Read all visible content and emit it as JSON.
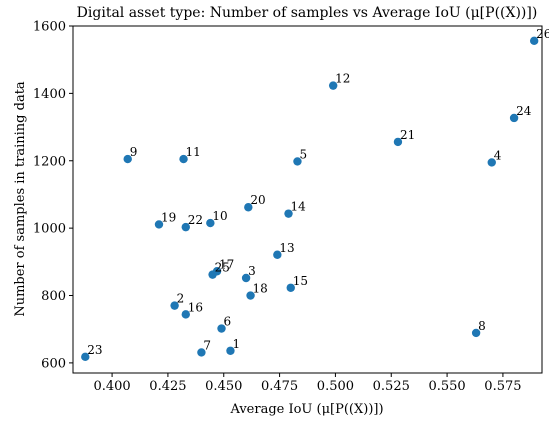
{
  "chart_data": {
    "type": "scatter",
    "title": "Digital asset type: Number of samples vs Average IoU (μ[P((X))])",
    "xlabel": "Average IoU (μ[P((X))])",
    "ylabel": "Number of samples in training data",
    "xlim": [
      0.3825,
      0.5925
    ],
    "ylim": [
      570,
      1600
    ],
    "xticks": [
      0.4,
      0.425,
      0.45,
      0.475,
      0.5,
      0.525,
      0.55,
      0.575
    ],
    "xtick_labels": [
      "0.400",
      "0.425",
      "0.450",
      "0.475",
      "0.500",
      "0.525",
      "0.550",
      "0.575"
    ],
    "yticks": [
      600,
      800,
      1000,
      1200,
      1400,
      1600
    ],
    "ytick_labels": [
      "600",
      "800",
      "1000",
      "1200",
      "1400",
      "1600"
    ],
    "grid": false,
    "marker_color": "#1f77b4",
    "points": [
      {
        "label": "1",
        "x": 0.453,
        "y": 636
      },
      {
        "label": "2",
        "x": 0.428,
        "y": 770
      },
      {
        "label": "3",
        "x": 0.46,
        "y": 852
      },
      {
        "label": "4",
        "x": 0.57,
        "y": 1195
      },
      {
        "label": "5",
        "x": 0.483,
        "y": 1198
      },
      {
        "label": "6",
        "x": 0.449,
        "y": 702
      },
      {
        "label": "7",
        "x": 0.44,
        "y": 631
      },
      {
        "label": "8",
        "x": 0.563,
        "y": 689
      },
      {
        "label": "9",
        "x": 0.407,
        "y": 1205
      },
      {
        "label": "10",
        "x": 0.444,
        "y": 1015
      },
      {
        "label": "11",
        "x": 0.432,
        "y": 1205
      },
      {
        "label": "12",
        "x": 0.499,
        "y": 1423
      },
      {
        "label": "13",
        "x": 0.474,
        "y": 921
      },
      {
        "label": "14",
        "x": 0.479,
        "y": 1043
      },
      {
        "label": "15",
        "x": 0.48,
        "y": 823
      },
      {
        "label": "16",
        "x": 0.433,
        "y": 744
      },
      {
        "label": "17",
        "x": 0.447,
        "y": 872
      },
      {
        "label": "18",
        "x": 0.462,
        "y": 800
      },
      {
        "label": "19",
        "x": 0.421,
        "y": 1011
      },
      {
        "label": "20",
        "x": 0.461,
        "y": 1062
      },
      {
        "label": "21",
        "x": 0.528,
        "y": 1256
      },
      {
        "label": "22",
        "x": 0.433,
        "y": 1003
      },
      {
        "label": "23",
        "x": 0.388,
        "y": 618
      },
      {
        "label": "24",
        "x": 0.58,
        "y": 1327
      },
      {
        "label": "25",
        "x": 0.445,
        "y": 862
      },
      {
        "label": "26",
        "x": 0.589,
        "y": 1556
      }
    ]
  }
}
